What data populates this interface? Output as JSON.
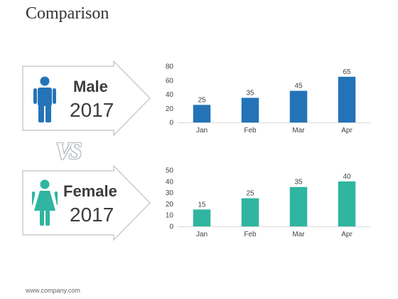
{
  "page": {
    "title": "Comparison",
    "footer": "www.company.com"
  },
  "colors": {
    "male": "#2473b8",
    "female": "#2fb5a0",
    "arrow_stroke": "#c8ccd1",
    "grid": "#e3e3e3"
  },
  "versus": {
    "text": "VS"
  },
  "panels": {
    "male": {
      "label": "Male",
      "year": "2017",
      "icon": "male-person-icon"
    },
    "female": {
      "label": "Female",
      "year": "2017",
      "icon": "female-person-icon"
    }
  },
  "chart_data": [
    {
      "type": "bar",
      "categories": [
        "Jan",
        "Feb",
        "Mar",
        "Apr"
      ],
      "values": [
        25,
        35,
        45,
        65
      ],
      "ylim": [
        0,
        80
      ],
      "yticks": [
        0,
        20,
        40,
        60,
        80
      ],
      "grid": false,
      "color": "#2473b8"
    },
    {
      "type": "bar",
      "categories": [
        "Jan",
        "Feb",
        "Mar",
        "Apr"
      ],
      "values": [
        15,
        25,
        35,
        40
      ],
      "ylim": [
        0,
        50
      ],
      "yticks": [
        0,
        10,
        20,
        30,
        40,
        50
      ],
      "grid": false,
      "color": "#2fb5a0"
    }
  ]
}
